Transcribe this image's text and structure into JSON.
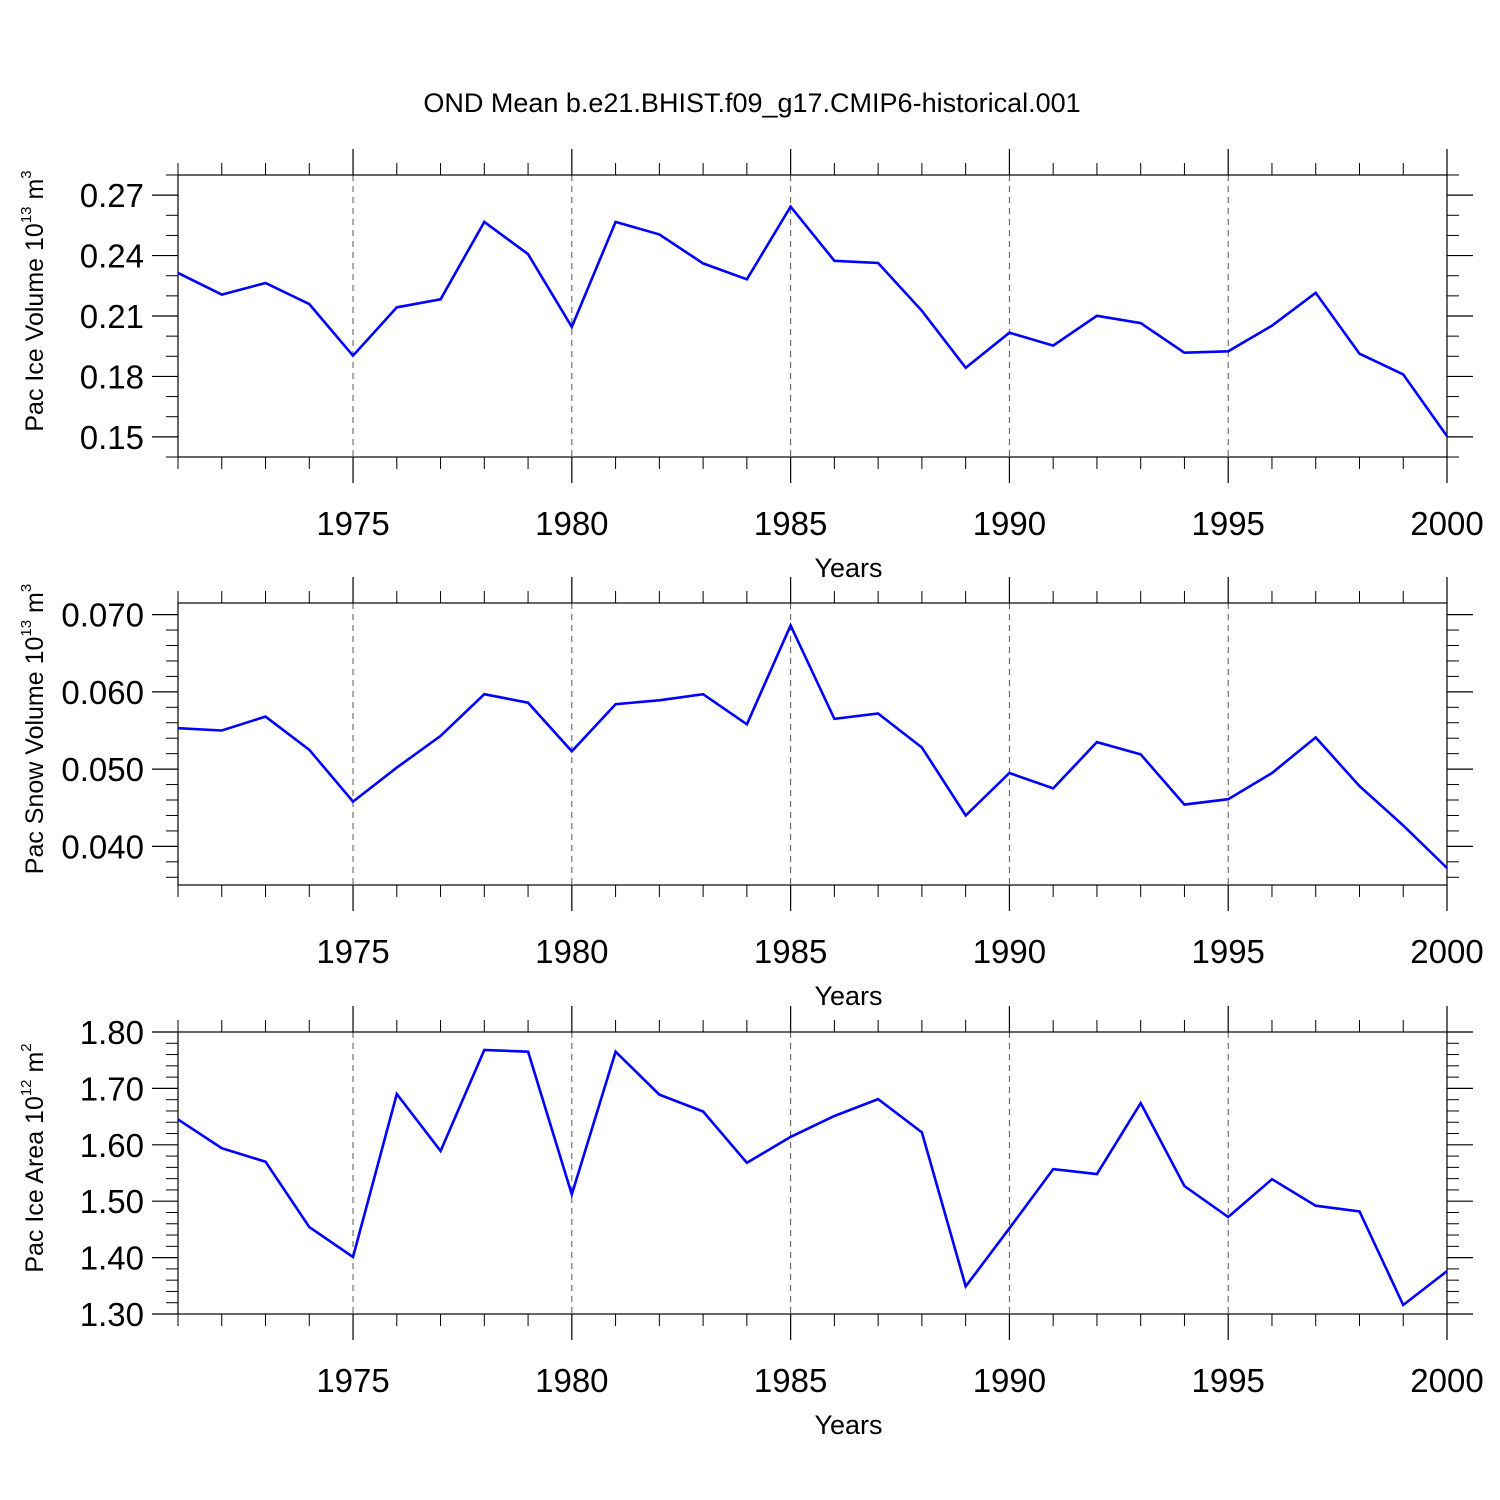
{
  "title": "OND Mean b.e21.BHIST.f09_g17.CMIP6-historical.001",
  "line_color": "#0000ff",
  "chart_data": [
    {
      "type": "line",
      "series": [
        {
          "name": "Pac Ice Volume",
          "x": [
            1971,
            1972,
            1973,
            1974,
            1975,
            1976,
            1977,
            1978,
            1979,
            1980,
            1981,
            1982,
            1983,
            1984,
            1985,
            1986,
            1987,
            1988,
            1989,
            1990,
            1991,
            1992,
            1993,
            1994,
            1995,
            1996,
            1997,
            1998,
            1999,
            2000
          ],
          "values": [
            0.2314,
            0.2206,
            0.2264,
            0.2159,
            0.1903,
            0.2143,
            0.2183,
            0.2567,
            0.2407,
            0.2046,
            0.2567,
            0.2505,
            0.2361,
            0.2282,
            0.2643,
            0.2374,
            0.2363,
            0.2126,
            0.1843,
            0.2017,
            0.1953,
            0.2101,
            0.2065,
            0.1918,
            0.1925,
            0.2052,
            0.2215,
            0.1913,
            0.181,
            0.1504
          ]
        }
      ],
      "ylabel_main": "Pac Ice Volume 10",
      "ylabel_exp": "13",
      "ylabel_unit": " m",
      "ylabel_unit_exp": "3",
      "xlabel": "Years",
      "xlim": [
        1971,
        2000
      ],
      "ylim": [
        0.14,
        0.28
      ],
      "yticks": [
        0.15,
        0.18,
        0.21,
        0.24,
        0.27
      ],
      "ytick_labels": [
        "0.15",
        "0.18",
        "0.21",
        "0.24",
        "0.27"
      ],
      "yminor_step": 0.01,
      "xticks": [
        1975,
        1980,
        1985,
        1990,
        1995,
        2000
      ],
      "xtick_labels": [
        "1975",
        "1980",
        "1985",
        "1990",
        "1995",
        "2000"
      ],
      "grid": "vertical dashed"
    },
    {
      "type": "line",
      "series": [
        {
          "name": "Pac Snow Volume",
          "x": [
            1971,
            1972,
            1973,
            1974,
            1975,
            1976,
            1977,
            1978,
            1979,
            1980,
            1981,
            1982,
            1983,
            1984,
            1985,
            1986,
            1987,
            1988,
            1989,
            1990,
            1991,
            1992,
            1993,
            1994,
            1995,
            1996,
            1997,
            1998,
            1999,
            2000
          ],
          "values": [
            0.0553,
            0.055,
            0.0568,
            0.0525,
            0.0458,
            0.0502,
            0.0543,
            0.0597,
            0.0586,
            0.0523,
            0.0584,
            0.0589,
            0.0597,
            0.0558,
            0.0686,
            0.0565,
            0.0572,
            0.0528,
            0.044,
            0.0495,
            0.0475,
            0.0535,
            0.0519,
            0.0454,
            0.0461,
            0.0495,
            0.0541,
            0.0478,
            0.0427,
            0.0372
          ]
        }
      ],
      "ylabel_main": "Pac Snow Volume 10",
      "ylabel_exp": "13",
      "ylabel_unit": " m",
      "ylabel_unit_exp": "3",
      "xlabel": "Years",
      "xlim": [
        1971,
        2000
      ],
      "ylim": [
        0.035,
        0.0715
      ],
      "yticks": [
        0.04,
        0.05,
        0.06,
        0.07
      ],
      "ytick_labels": [
        "0.040",
        "0.050",
        "0.060",
        "0.070"
      ],
      "yminor_step": 0.002,
      "xticks": [
        1975,
        1980,
        1985,
        1990,
        1995,
        2000
      ],
      "xtick_labels": [
        "1975",
        "1980",
        "1985",
        "1990",
        "1995",
        "2000"
      ],
      "grid": "vertical dashed"
    },
    {
      "type": "line",
      "series": [
        {
          "name": "Pac Ice Area",
          "x": [
            1971,
            1972,
            1973,
            1974,
            1975,
            1976,
            1977,
            1978,
            1979,
            1980,
            1981,
            1982,
            1983,
            1984,
            1985,
            1986,
            1987,
            1988,
            1989,
            1990,
            1991,
            1992,
            1993,
            1994,
            1995,
            1996,
            1997,
            1998,
            1999,
            2000
          ],
          "values": [
            1.645,
            1.594,
            1.57,
            1.454,
            1.401,
            1.69,
            1.589,
            1.768,
            1.765,
            1.512,
            1.765,
            1.689,
            1.659,
            1.568,
            1.614,
            1.651,
            1.681,
            1.622,
            1.349,
            1.452,
            1.557,
            1.548,
            1.674,
            1.527,
            1.472,
            1.539,
            1.492,
            1.482,
            1.316,
            1.376
          ]
        }
      ],
      "ylabel_main": "Pac Ice Area 10",
      "ylabel_exp": "12",
      "ylabel_unit": " m",
      "ylabel_unit_exp": "2",
      "xlabel": "Years",
      "xlim": [
        1971,
        2000
      ],
      "ylim": [
        1.3,
        1.8
      ],
      "yticks": [
        1.3,
        1.4,
        1.5,
        1.6,
        1.7,
        1.8
      ],
      "ytick_labels": [
        "1.30",
        "1.40",
        "1.50",
        "1.60",
        "1.70",
        "1.80"
      ],
      "yminor_step": 0.02,
      "xticks": [
        1975,
        1980,
        1985,
        1990,
        1995,
        2000
      ],
      "xtick_labels": [
        "1975",
        "1980",
        "1985",
        "1990",
        "1995",
        "2000"
      ],
      "grid": "vertical dashed"
    }
  ]
}
